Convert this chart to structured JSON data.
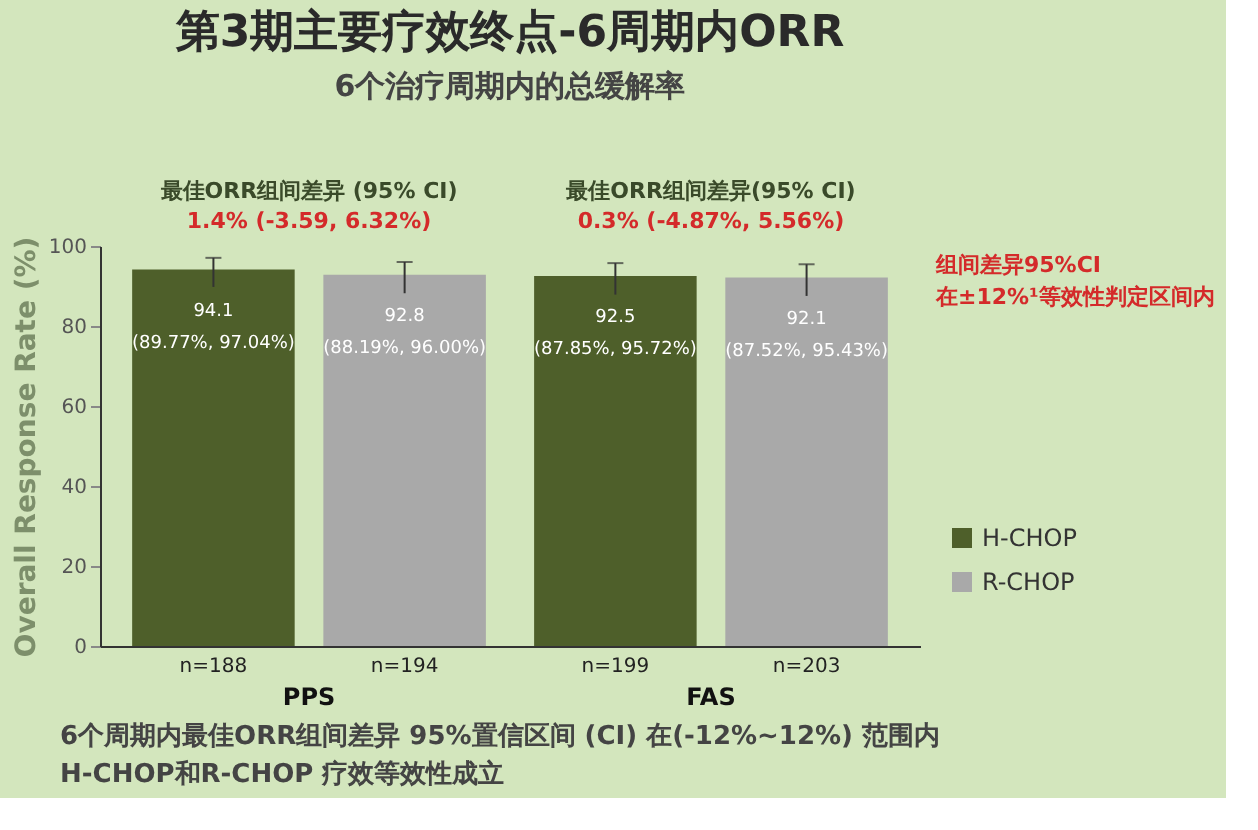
{
  "chart_data": {
    "type": "bar",
    "title": "第3期主要疗效终点-6周期内ORR",
    "subtitle": "6个治疗周期内的总缓解率",
    "ylabel": "Overall Response Rate (%)",
    "categories": [
      "PPS",
      "FAS"
    ],
    "series": [
      {
        "name": "H-CHOP",
        "color": "#4e5f2a",
        "values": [
          94.1,
          92.5
        ],
        "errors": [
          [
            89.77,
            97.04
          ],
          [
            87.85,
            95.72
          ]
        ],
        "value_labels": [
          "94.1\n(89.77%, 97.04%)",
          "92.5\n(87.85%, 95.72%)"
        ]
      },
      {
        "name": "R-CHOP",
        "color": "#a9a9a9",
        "values": [
          92.8,
          92.1
        ],
        "errors": [
          [
            88.19,
            96.0
          ],
          [
            87.52,
            95.43
          ]
        ],
        "value_labels": [
          "92.8\n(88.19%, 96.00%)",
          "92.1\n(87.52%, 95.43%)"
        ]
      }
    ],
    "ylim": [
      0,
      100
    ],
    "yticks": [
      0,
      20,
      40,
      60,
      80,
      100
    ],
    "grid": false,
    "legend": "right",
    "annotations": [
      "最佳ORR组间差异 (95% CI)",
      "1.4% (-3.59, 6.32%)",
      "最佳ORR组间差异(95% CI)",
      "0.3% (-4.87%, 5.56%)",
      "组间差异95%CI 在±12%¹等效性判定区间内",
      "n=188",
      "n=194",
      "n=199",
      "n=203",
      "6个周期内最佳ORR组间差异 95%置信区间 (CI) 在(-12%~12%) 范围内",
      "H-CHOP和R-CHOP 疗效等效性成立"
    ]
  }
}
